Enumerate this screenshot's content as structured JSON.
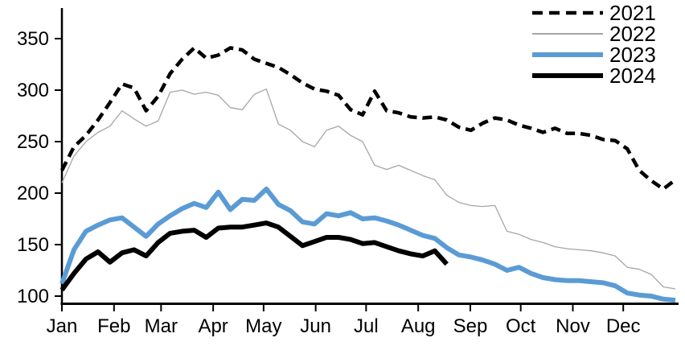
{
  "chart_data": {
    "type": "line",
    "title": "",
    "subtitle": "",
    "granularity": "weekly",
    "x_axis": {
      "label": "",
      "tick_labels": [
        "Jan",
        "Feb",
        "Mar",
        "Apr",
        "May",
        "Jun",
        "Jul",
        "Aug",
        "Sep",
        "Oct",
        "Nov",
        "Dec"
      ],
      "grid": false
    },
    "y_axis": {
      "label": "",
      "ticks": [
        100,
        150,
        200,
        250,
        300,
        350
      ],
      "range": [
        100,
        380
      ],
      "grid": false
    },
    "legend": {
      "position": "top-right",
      "entries": [
        "2021",
        "2022",
        "2023",
        "2024"
      ]
    },
    "colors": {
      "axis": "#000000",
      "text": "#000000",
      "series_2021": "#000000",
      "series_2022": "#a6a6a6",
      "series_2023": "#5b9bd5",
      "series_2024": "#000000"
    },
    "series": [
      {
        "name": "2021",
        "color": "#000000",
        "style": "dashed",
        "width": 4.5,
        "values": [
          222,
          245,
          256,
          271,
          288,
          306,
          302,
          280,
          294,
          316,
          330,
          341,
          331,
          334,
          341,
          339,
          330,
          326,
          322,
          315,
          307,
          301,
          299,
          295,
          281,
          276,
          299,
          280,
          278,
          274,
          273,
          274,
          271,
          264,
          261,
          268,
          273,
          271,
          266,
          263,
          259,
          263,
          258,
          258,
          256,
          252,
          251,
          243,
          222,
          212,
          204,
          213
        ]
      },
      {
        "name": "2022",
        "color": "#a6a6a6",
        "style": "solid",
        "width": 1.3,
        "values": [
          210,
          236,
          250,
          259,
          265,
          280,
          272,
          265,
          270,
          298,
          300,
          296,
          298,
          295,
          283,
          281,
          296,
          301,
          267,
          261,
          250,
          245,
          261,
          265,
          256,
          250,
          227,
          223,
          227,
          222,
          217,
          213,
          198,
          191,
          188,
          187,
          188,
          163,
          160,
          155,
          152,
          148,
          146,
          145,
          144,
          142,
          139,
          128,
          126,
          121,
          109,
          107
        ]
      },
      {
        "name": "2023",
        "color": "#5b9bd5",
        "style": "solid",
        "width": 6,
        "values": [
          112,
          145,
          163,
          169,
          174,
          176,
          167,
          158,
          170,
          178,
          185,
          190,
          186,
          201,
          184,
          194,
          193,
          204,
          189,
          183,
          172,
          170,
          180,
          178,
          181,
          175,
          176,
          173,
          169,
          164,
          159,
          156,
          147,
          140,
          138,
          135,
          131,
          125,
          128,
          122,
          118,
          116,
          115,
          115,
          114,
          113,
          110,
          103,
          101,
          100,
          97,
          96
        ]
      },
      {
        "name": "2024",
        "color": "#000000",
        "style": "solid",
        "width": 6,
        "values": [
          106,
          122,
          136,
          143,
          133,
          142,
          145,
          139,
          152,
          161,
          163,
          164,
          157,
          166,
          167,
          167,
          169,
          171,
          167,
          158,
          149,
          153,
          157,
          157,
          155,
          151,
          152,
          148,
          144,
          141,
          139,
          144,
          131
        ]
      }
    ]
  }
}
